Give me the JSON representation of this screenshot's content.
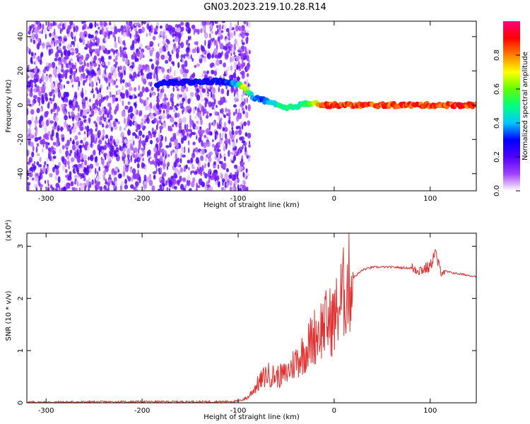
{
  "title": "GN03.2023.219.10.28.R14",
  "chart_data": [
    {
      "type": "heatmap",
      "xlabel": "Height of straight line (km)",
      "ylabel": "Frequency (Hz)",
      "xlim": [
        -320,
        148
      ],
      "ylim": [
        -50,
        49
      ],
      "x_ticks": [
        -300,
        -200,
        -100,
        0,
        100
      ],
      "x_tick_labels": [
        "-300",
        "-200",
        "-100",
        "0",
        "100"
      ],
      "y_ticks": [
        -40,
        -20,
        0,
        20,
        40
      ],
      "y_tick_labels": [
        "-40",
        "-20",
        "0",
        "20",
        "40"
      ],
      "colorbar": {
        "label": "Normalized spectral amplitude",
        "range": [
          0,
          1
        ],
        "ticks": [
          0.0,
          0.2,
          0.4,
          0.6,
          0.8
        ],
        "tick_labels": [
          "0.0",
          "0.2",
          "0.4",
          "0.6",
          "0.8"
        ],
        "colormap": [
          "#ffffff",
          "#a040ff",
          "#5000ff",
          "#0000ff",
          "#00c8ff",
          "#00ff80",
          "#60ff00",
          "#ffff00",
          "#ff8000",
          "#ff0000",
          "#ff0080"
        ]
      },
      "noise_region_x": [
        -320,
        -100
      ],
      "ridge": [
        {
          "x": -185,
          "y": 12,
          "a": 0.3
        },
        {
          "x": -175,
          "y": 13,
          "a": 0.3
        },
        {
          "x": -120,
          "y": 14,
          "a": 0.3
        },
        {
          "x": -100,
          "y": 12,
          "a": 0.4
        },
        {
          "x": -95,
          "y": 11,
          "a": 0.8
        },
        {
          "x": -85,
          "y": 5,
          "a": 0.4
        },
        {
          "x": -75,
          "y": 3,
          "a": 0.35
        },
        {
          "x": -65,
          "y": 1,
          "a": 0.45
        },
        {
          "x": -50,
          "y": -2,
          "a": 0.55
        },
        {
          "x": -35,
          "y": 0,
          "a": 0.5
        },
        {
          "x": -20,
          "y": 2,
          "a": 0.7
        },
        {
          "x": -15,
          "y": 0,
          "a": 0.85
        },
        {
          "x": 0,
          "y": 0,
          "a": 0.9
        },
        {
          "x": 50,
          "y": 0,
          "a": 0.9
        },
        {
          "x": 100,
          "y": 0,
          "a": 0.9
        },
        {
          "x": 148,
          "y": 0,
          "a": 0.9
        }
      ]
    },
    {
      "type": "line",
      "xlabel": "Height of straight line (km)",
      "ylabel": "SNR (10 * v/v)",
      "y_scale_label": "(x10⁴)",
      "xlim": [
        -320,
        148
      ],
      "ylim": [
        0,
        3.25
      ],
      "x_ticks": [
        -300,
        -200,
        -100,
        0,
        100
      ],
      "x_tick_labels": [
        "-300",
        "-200",
        "-100",
        "0",
        "100"
      ],
      "y_ticks": [
        0,
        1,
        2,
        3
      ],
      "y_tick_labels": [
        "0",
        "1",
        "2",
        "3"
      ],
      "series": [
        {
          "color": "#e03030",
          "x": [
            -320,
            -200,
            -120,
            -100,
            -90,
            -80,
            -70,
            -60,
            -50,
            -40,
            -30,
            -20,
            -10,
            0,
            10,
            20,
            30,
            40,
            60,
            80,
            90,
            100,
            105,
            110,
            120,
            148
          ],
          "y": [
            0.01,
            0.02,
            0.02,
            0.03,
            0.1,
            0.35,
            0.55,
            0.5,
            0.55,
            0.8,
            1.0,
            1.3,
            1.5,
            1.6,
            2.1,
            2.4,
            2.55,
            2.6,
            2.6,
            2.58,
            2.55,
            2.6,
            2.9,
            2.55,
            2.5,
            2.42
          ]
        }
      ]
    }
  ]
}
